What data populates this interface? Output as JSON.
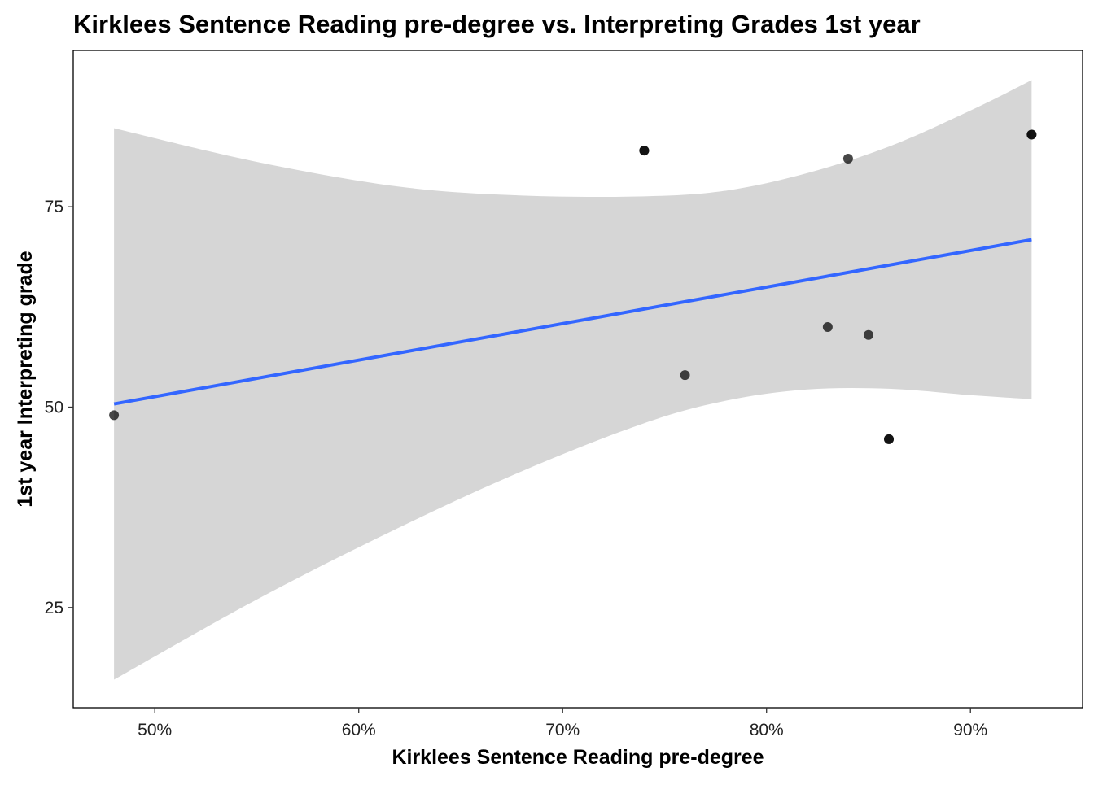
{
  "chart_data": {
    "type": "scatter",
    "title": "Kirklees Sentence Reading pre-degree vs. Interpreting Grades 1st year",
    "xlabel": "Kirklees Sentence Reading pre-degree",
    "ylabel": "1st year Interpreting grade",
    "xlim": [
      0.46,
      0.955
    ],
    "ylim": [
      12.5,
      94.5
    ],
    "x_ticks": [
      0.5,
      0.6,
      0.7,
      0.8,
      0.9
    ],
    "x_tick_labels": [
      "50%",
      "60%",
      "70%",
      "80%",
      "90%"
    ],
    "y_ticks": [
      25,
      50,
      75
    ],
    "y_tick_labels": [
      "25",
      "50",
      "75"
    ],
    "points": [
      {
        "x": 0.48,
        "y": 49
      },
      {
        "x": 0.74,
        "y": 82
      },
      {
        "x": 0.74,
        "y": 82
      },
      {
        "x": 0.76,
        "y": 54
      },
      {
        "x": 0.83,
        "y": 60
      },
      {
        "x": 0.84,
        "y": 81
      },
      {
        "x": 0.85,
        "y": 59
      },
      {
        "x": 0.86,
        "y": 46
      },
      {
        "x": 0.86,
        "y": 46
      },
      {
        "x": 0.93,
        "y": 84
      },
      {
        "x": 0.93,
        "y": 84
      }
    ],
    "regression_line": {
      "x": [
        0.48,
        0.93
      ],
      "y": [
        50.4,
        70.9
      ]
    },
    "confidence_band": {
      "x": [
        0.48,
        0.55,
        0.62,
        0.68,
        0.74,
        0.78,
        0.82,
        0.86,
        0.9,
        0.93
      ],
      "upper": [
        84.8,
        80.6,
        77.5,
        76.4,
        76.3,
        77.0,
        79.2,
        82.5,
        87.0,
        90.8
      ],
      "lower": [
        16.0,
        26.0,
        35.0,
        42.0,
        48.0,
        50.8,
        52.2,
        52.3,
        51.5,
        51.0
      ]
    },
    "grid": false,
    "colors": {
      "line": "#3366FF",
      "band": "#d6d6d6",
      "points": "#000000"
    }
  }
}
